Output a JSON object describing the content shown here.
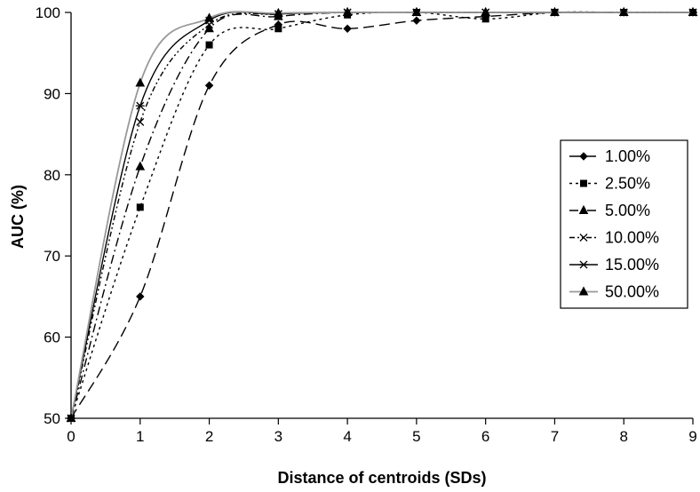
{
  "chart_data": {
    "type": "line",
    "title": "",
    "xlabel": "Distance of centroids (SDs)",
    "ylabel": "AUC (%)",
    "xlim": [
      0,
      9
    ],
    "ylim": [
      50,
      100
    ],
    "xticks": [
      0,
      1,
      2,
      3,
      4,
      5,
      6,
      7,
      8,
      9
    ],
    "yticks": [
      50,
      60,
      70,
      80,
      90,
      100
    ],
    "grid": false,
    "legend_position": "right",
    "series": [
      {
        "name": "1.00%",
        "color": "#000000",
        "dash": "12,6",
        "marker": "diamond",
        "x": [
          0,
          1,
          2,
          3,
          4,
          5,
          6,
          7,
          8,
          9
        ],
        "y": [
          50,
          65,
          91,
          98.5,
          98,
          99,
          99.5,
          100,
          100,
          100
        ]
      },
      {
        "name": "2.50%",
        "color": "#000000",
        "dash": "3,4",
        "marker": "square",
        "x": [
          0,
          1,
          2,
          3,
          4,
          5,
          6,
          7,
          8,
          9
        ],
        "y": [
          50,
          76,
          96,
          98,
          99.7,
          100,
          99.2,
          100,
          100,
          100
        ]
      },
      {
        "name": "5.00%",
        "color": "#000000",
        "dash": "10,4,2,4",
        "marker": "triangle",
        "x": [
          0,
          1,
          2,
          3,
          4,
          5,
          6,
          7,
          8,
          9
        ],
        "y": [
          50,
          81,
          98,
          99.5,
          100,
          100,
          100,
          100,
          100,
          100
        ]
      },
      {
        "name": "10.00%",
        "color": "#000000",
        "dash": "6,3,2,3,2,3",
        "marker": "x",
        "x": [
          0,
          1,
          2,
          3,
          4,
          5,
          6,
          7,
          8,
          9
        ],
        "y": [
          50,
          86.5,
          98.5,
          99.8,
          100,
          100,
          100,
          100,
          100,
          100
        ]
      },
      {
        "name": "15.00%",
        "color": "#000000",
        "dash": "",
        "marker": "star",
        "x": [
          0,
          1,
          2,
          3,
          4,
          5,
          6,
          7,
          8,
          9
        ],
        "y": [
          50,
          88.5,
          99,
          99.8,
          100,
          100,
          100,
          100,
          100,
          100
        ]
      },
      {
        "name": "50.00%",
        "color": "#999999",
        "marker_color": "#000000",
        "dash": "",
        "marker": "triangle",
        "x": [
          0,
          1,
          2,
          3,
          4,
          5,
          6,
          7,
          8,
          9
        ],
        "y": [
          50,
          91.3,
          99.3,
          99.9,
          100,
          100,
          100,
          100,
          100,
          100
        ]
      }
    ]
  }
}
